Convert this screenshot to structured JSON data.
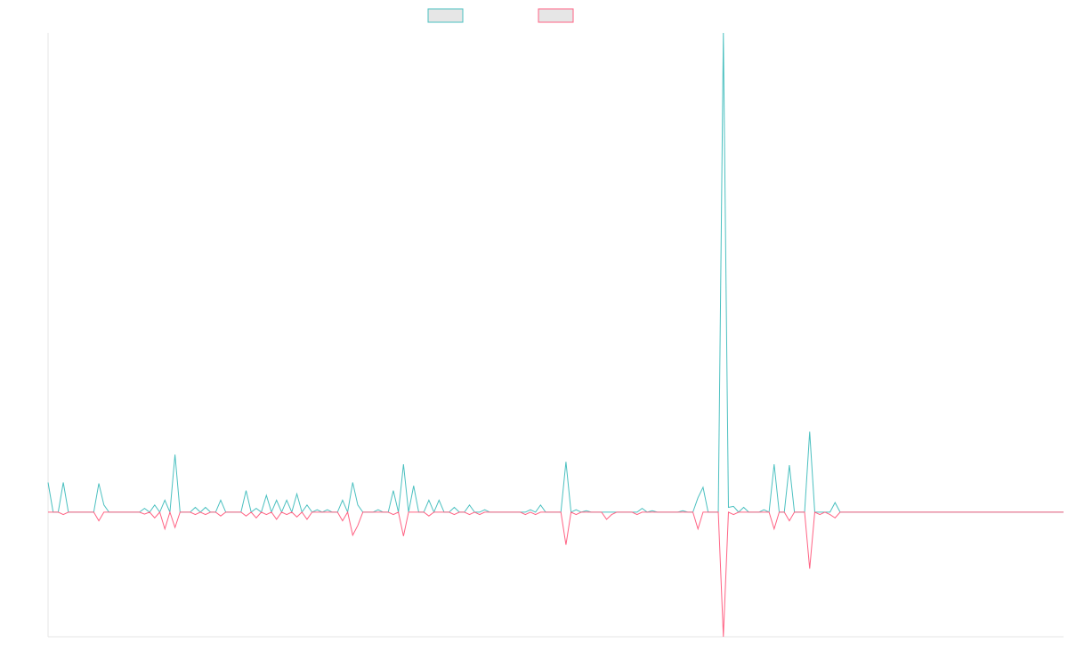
{
  "chart_data": {
    "type": "line",
    "title": "",
    "xlabel": "",
    "ylabel": "",
    "grid": false,
    "legend_position": "top-center",
    "x_count": 201,
    "ylim": [
      -0.26,
      1.0
    ],
    "series": [
      {
        "name": "",
        "color": "#4bc0c0",
        "fill": "#e6e6e6",
        "spikes": {
          "0": 0.062,
          "3": 0.062,
          "10": 0.06,
          "11": 0.015,
          "13": 0.0,
          "18": 0.0,
          "19": 0.008,
          "20": 0.0,
          "21": 0.015,
          "22": 0.0,
          "23": 0.025,
          "24": 0.0,
          "25": 0.12,
          "28": 0.0,
          "29": 0.01,
          "30": 0.0,
          "31": 0.01,
          "34": 0.025,
          "35": 0.0,
          "36": 0.0,
          "37": 0.0,
          "38": 0.0,
          "39": 0.045,
          "40": 0.0,
          "41": 0.008,
          "42": 0.0,
          "43": 0.035,
          "44": 0.0,
          "45": 0.025,
          "46": 0.0,
          "47": 0.025,
          "48": 0.0,
          "49": 0.038,
          "50": 0.0,
          "51": 0.015,
          "52": 0.0,
          "53": 0.005,
          "54": 0.0,
          "55": 0.005,
          "57": 0.0,
          "58": 0.025,
          "59": 0.0,
          "60": 0.062,
          "61": 0.015,
          "62": 0.0,
          "64": 0.0,
          "65": 0.005,
          "66": 0.0,
          "67": 0.0,
          "68": 0.045,
          "70": 0.1,
          "71": 0.0,
          "72": 0.055,
          "73": 0.0,
          "74": 0.0,
          "75": 0.025,
          "76": 0.0,
          "77": 0.025,
          "78": 0.0,
          "79": 0.0,
          "80": 0.01,
          "82": 0.0,
          "83": 0.015,
          "84": 0.0,
          "86": 0.005,
          "94": 0.0,
          "95": 0.005,
          "96": 0.0,
          "97": 0.015,
          "98": 0.0,
          "99": 0.0,
          "101": 0.0,
          "102": 0.105,
          "103": 0.0,
          "104": 0.005,
          "105": 0.0,
          "106": 0.003,
          "116": 0.0,
          "117": 0.008,
          "118": 0.0,
          "119": 0.003,
          "120": 0.0,
          "125": 0.003,
          "128": 0.03,
          "129": 0.052,
          "130": 0.0,
          "133": 1.0,
          "134": 0.01,
          "135": 0.012,
          "136": 0.0,
          "137": 0.01,
          "138": 0.0,
          "141": 0.005,
          "142": 0.0,
          "143": 0.1,
          "144": 0.0,
          "145": 0.0,
          "146": 0.098,
          "147": 0.0,
          "149": 0.0,
          "150": 0.168,
          "151": 0.0,
          "152": 0.0,
          "153": 0.0,
          "154": 0.0,
          "155": 0.02
        }
      },
      {
        "name": "",
        "color": "#ff6384",
        "fill": "#e6e6e6",
        "spikes": {
          "3": -0.005,
          "10": -0.018,
          "18": 0.0,
          "19": -0.004,
          "20": 0.0,
          "21": -0.012,
          "22": 0.0,
          "23": -0.035,
          "25": -0.032,
          "28": 0.0,
          "29": -0.005,
          "30": 0.0,
          "31": -0.005,
          "34": -0.008,
          "39": -0.008,
          "40": 0.0,
          "41": -0.012,
          "42": 0.0,
          "43": -0.005,
          "44": 0.0,
          "45": -0.015,
          "46": 0.0,
          "47": -0.005,
          "48": 0.0,
          "49": -0.01,
          "50": 0.0,
          "51": -0.015,
          "58": -0.018,
          "59": 0.0,
          "60": -0.048,
          "61": -0.028,
          "62": 0.0,
          "68": -0.005,
          "70": -0.05,
          "71": 0.0,
          "74": 0.0,
          "75": -0.008,
          "76": 0.0,
          "80": -0.005,
          "82": 0.0,
          "83": -0.005,
          "85": -0.005,
          "94": -0.005,
          "96": -0.005,
          "99": 0.0,
          "101": 0.0,
          "102": -0.068,
          "103": 0.0,
          "104": -0.005,
          "109": 0.0,
          "110": -0.015,
          "111": -0.005,
          "112": 0.0,
          "116": -0.005,
          "128": -0.035,
          "129": 0.0,
          "133": -0.26,
          "134": 0.0,
          "135": -0.005,
          "136": 0.0,
          "142": 0.0,
          "143": -0.035,
          "144": 0.0,
          "145": 0.0,
          "146": -0.018,
          "147": 0.0,
          "149": 0.0,
          "150": -0.118,
          "151": 0.0,
          "152": -0.005,
          "153": 0.0,
          "154": -0.005,
          "155": -0.012,
          "156": 0.0
        }
      }
    ]
  }
}
